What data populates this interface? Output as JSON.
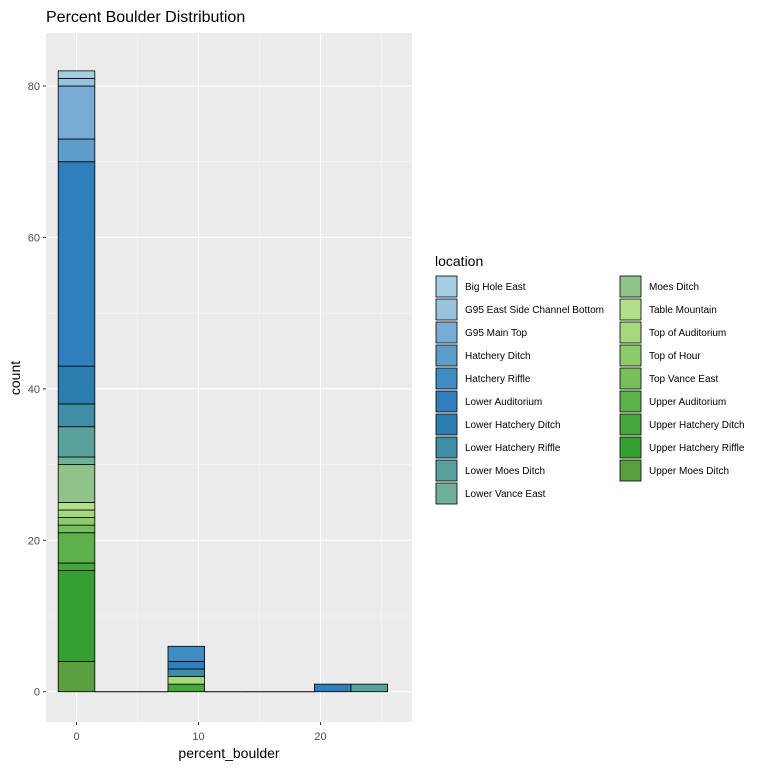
{
  "chart_data": {
    "type": "bar",
    "subtype": "stacked-histogram",
    "title": "Percent Boulder Distribution",
    "xlabel": "percent_boulder",
    "ylabel": "count",
    "xlim": [
      -2.5,
      27.5
    ],
    "ylim": [
      -4,
      87
    ],
    "xticks": [
      0,
      10,
      20
    ],
    "yticks": [
      0,
      20,
      40,
      60,
      80
    ],
    "grid": true,
    "background": "#ebebeb",
    "bar_outline": "#000000",
    "legend": {
      "title": "location",
      "placement": "right",
      "columns": 2
    },
    "bins": [
      {
        "x0": -1.5,
        "x1": 1.5
      },
      {
        "x0": 1.5,
        "x1": 4.5
      },
      {
        "x0": 4.5,
        "x1": 7.5
      },
      {
        "x0": 7.5,
        "x1": 10.5
      },
      {
        "x0": 10.5,
        "x1": 13.5
      },
      {
        "x0": 13.5,
        "x1": 16.5
      },
      {
        "x0": 16.5,
        "x1": 19.5
      },
      {
        "x0": 19.5,
        "x1": 22.5
      },
      {
        "x0": 22.5,
        "x1": 25.5
      }
    ],
    "series": [
      {
        "name": "Big Hole East",
        "color": "#a6cee3",
        "values": [
          1,
          0,
          0,
          0,
          0,
          0,
          0,
          0,
          0
        ]
      },
      {
        "name": "G95 East Side Channel Bottom",
        "color": "#97c3df",
        "values": [
          1,
          0,
          0,
          0,
          0,
          0,
          0,
          0,
          0
        ]
      },
      {
        "name": "G95 Main Top",
        "color": "#78acd4",
        "values": [
          7,
          0,
          0,
          0,
          0,
          0,
          0,
          0,
          0
        ]
      },
      {
        "name": "Hatchery Ditch",
        "color": "#5d9ccb",
        "values": [
          3,
          0,
          0,
          0,
          0,
          0,
          0,
          0,
          0
        ]
      },
      {
        "name": "Hatchery Riffle",
        "color": "#3f8cc2",
        "values": [
          0,
          0,
          0,
          2,
          0,
          0,
          0,
          0,
          0
        ]
      },
      {
        "name": "Lower Auditorium",
        "color": "#2f7fbc",
        "values": [
          27,
          0,
          0,
          1,
          0,
          0,
          0,
          1,
          0
        ]
      },
      {
        "name": "Lower Hatchery Ditch",
        "color": "#2b7db0",
        "values": [
          5,
          0,
          0,
          0,
          0,
          0,
          0,
          0,
          0
        ]
      },
      {
        "name": "Lower Hatchery Riffle",
        "color": "#3f8ea6",
        "values": [
          3,
          0,
          0,
          1,
          0,
          0,
          0,
          0,
          0
        ]
      },
      {
        "name": "Lower Moes Ditch",
        "color": "#5aa19d",
        "values": [
          4,
          0,
          0,
          0,
          0,
          0,
          0,
          0,
          1
        ]
      },
      {
        "name": "Lower Vance East",
        "color": "#72b095",
        "values": [
          1,
          0,
          0,
          0,
          0,
          0,
          0,
          0,
          0
        ]
      },
      {
        "name": "Moes Ditch",
        "color": "#8fc38a",
        "values": [
          5,
          0,
          0,
          0,
          0,
          0,
          0,
          0,
          0
        ]
      },
      {
        "name": "Table Mountain",
        "color": "#b2df8a",
        "values": [
          1,
          0,
          0,
          0,
          0,
          0,
          0,
          0,
          0
        ]
      },
      {
        "name": "Top of Auditorium",
        "color": "#a5d77f",
        "values": [
          1,
          0,
          0,
          1,
          0,
          0,
          0,
          0,
          0
        ]
      },
      {
        "name": "Top of Hour",
        "color": "#8ccb6c",
        "values": [
          1,
          0,
          0,
          0,
          0,
          0,
          0,
          0,
          0
        ]
      },
      {
        "name": "Top Vance East",
        "color": "#77bf5d",
        "values": [
          1,
          0,
          0,
          0,
          0,
          0,
          0,
          0,
          0
        ]
      },
      {
        "name": "Upper Auditorium",
        "color": "#5db14b",
        "values": [
          4,
          0,
          0,
          0,
          0,
          0,
          0,
          0,
          0
        ]
      },
      {
        "name": "Upper Hatchery Ditch",
        "color": "#45a63a",
        "values": [
          1,
          0,
          0,
          1,
          0,
          0,
          0,
          0,
          0
        ]
      },
      {
        "name": "Upper Hatchery Riffle",
        "color": "#35a02f",
        "values": [
          12,
          0,
          0,
          0,
          0,
          0,
          0,
          0,
          0
        ]
      },
      {
        "name": "Upper Moes Ditch",
        "color": "#5a9e3f",
        "values": [
          4,
          0,
          0,
          0,
          0,
          0,
          0,
          0,
          0
        ]
      }
    ]
  }
}
